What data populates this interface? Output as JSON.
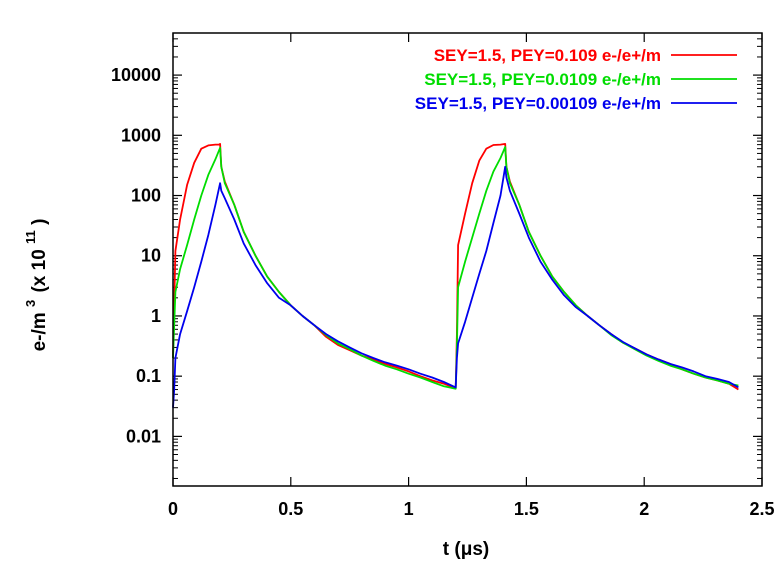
{
  "chart_data": {
    "type": "line",
    "title": "",
    "xlabel": "t (μs)",
    "ylabel": "e-/m",
    "ylabel_super": "3",
    "ylabel_scale": "(x 10",
    "ylabel_scale_exp": "11",
    "ylabel_scale_close": ")",
    "xlim": [
      0,
      2.5
    ],
    "ylim": [
      0.0015,
      50000
    ],
    "yscale": "log",
    "grid": false,
    "legend_position": "top-right",
    "x_ticks": [
      {
        "value": 0,
        "label": "0"
      },
      {
        "value": 0.5,
        "label": "0.5"
      },
      {
        "value": 1,
        "label": "1"
      },
      {
        "value": 1.5,
        "label": "1.5"
      },
      {
        "value": 2,
        "label": "2"
      },
      {
        "value": 2.5,
        "label": "2.5"
      }
    ],
    "y_ticks": [
      {
        "value": 0.01,
        "label": "0.01"
      },
      {
        "value": 0.1,
        "label": "0.1"
      },
      {
        "value": 1,
        "label": "1"
      },
      {
        "value": 10,
        "label": "10"
      },
      {
        "value": 100,
        "label": "100"
      },
      {
        "value": 1000,
        "label": "1000"
      },
      {
        "value": 10000,
        "label": "10000"
      }
    ],
    "series": [
      {
        "name": "SEY=1.5, PEY=0.109 e-/e+/m",
        "color": "#ff0000",
        "points": [
          [
            0,
            0.2
          ],
          [
            0.01,
            12
          ],
          [
            0.03,
            40
          ],
          [
            0.06,
            150
          ],
          [
            0.09,
            350
          ],
          [
            0.12,
            600
          ],
          [
            0.15,
            680
          ],
          [
            0.18,
            700
          ],
          [
            0.195,
            700
          ],
          [
            0.2,
            720
          ],
          [
            0.205,
            300
          ],
          [
            0.22,
            170
          ],
          [
            0.26,
            70
          ],
          [
            0.3,
            25
          ],
          [
            0.35,
            10
          ],
          [
            0.4,
            4.5
          ],
          [
            0.45,
            2.5
          ],
          [
            0.5,
            1.5
          ],
          [
            0.55,
            1.0
          ],
          [
            0.6,
            0.7
          ],
          [
            0.65,
            0.45
          ],
          [
            0.7,
            0.33
          ],
          [
            0.75,
            0.27
          ],
          [
            0.8,
            0.22
          ],
          [
            0.85,
            0.19
          ],
          [
            0.9,
            0.16
          ],
          [
            0.95,
            0.14
          ],
          [
            1.0,
            0.12
          ],
          [
            1.05,
            0.1
          ],
          [
            1.1,
            0.085
          ],
          [
            1.15,
            0.075
          ],
          [
            1.2,
            0.063
          ],
          [
            1.205,
            0.5
          ],
          [
            1.21,
            15
          ],
          [
            1.24,
            50
          ],
          [
            1.27,
            160
          ],
          [
            1.3,
            380
          ],
          [
            1.33,
            600
          ],
          [
            1.36,
            690
          ],
          [
            1.39,
            700
          ],
          [
            1.41,
            720
          ],
          [
            1.415,
            300
          ],
          [
            1.43,
            170
          ],
          [
            1.47,
            70
          ],
          [
            1.51,
            25
          ],
          [
            1.56,
            10
          ],
          [
            1.61,
            4.5
          ],
          [
            1.66,
            2.5
          ],
          [
            1.71,
            1.5
          ],
          [
            1.76,
            1.0
          ],
          [
            1.81,
            0.7
          ],
          [
            1.86,
            0.5
          ],
          [
            1.91,
            0.36
          ],
          [
            1.96,
            0.29
          ],
          [
            2.01,
            0.23
          ],
          [
            2.06,
            0.19
          ],
          [
            2.11,
            0.16
          ],
          [
            2.16,
            0.13
          ],
          [
            2.21,
            0.11
          ],
          [
            2.26,
            0.095
          ],
          [
            2.31,
            0.085
          ],
          [
            2.36,
            0.075
          ],
          [
            2.4,
            0.06
          ]
        ]
      },
      {
        "name": "SEY=1.5, PEY=0.0109 e-/e+/m",
        "color": "#00dd00",
        "points": [
          [
            0,
            0.2
          ],
          [
            0.01,
            2.5
          ],
          [
            0.03,
            6
          ],
          [
            0.06,
            15
          ],
          [
            0.09,
            40
          ],
          [
            0.12,
            100
          ],
          [
            0.15,
            220
          ],
          [
            0.18,
            400
          ],
          [
            0.2,
            620
          ],
          [
            0.205,
            300
          ],
          [
            0.22,
            160
          ],
          [
            0.26,
            70
          ],
          [
            0.3,
            25
          ],
          [
            0.35,
            10
          ],
          [
            0.4,
            4.5
          ],
          [
            0.45,
            2.5
          ],
          [
            0.5,
            1.5
          ],
          [
            0.55,
            1.0
          ],
          [
            0.6,
            0.7
          ],
          [
            0.65,
            0.48
          ],
          [
            0.7,
            0.35
          ],
          [
            0.75,
            0.28
          ],
          [
            0.8,
            0.22
          ],
          [
            0.85,
            0.18
          ],
          [
            0.9,
            0.15
          ],
          [
            0.95,
            0.13
          ],
          [
            1.0,
            0.11
          ],
          [
            1.05,
            0.095
          ],
          [
            1.1,
            0.08
          ],
          [
            1.15,
            0.068
          ],
          [
            1.2,
            0.062
          ],
          [
            1.205,
            0.3
          ],
          [
            1.21,
            3
          ],
          [
            1.24,
            8
          ],
          [
            1.27,
            20
          ],
          [
            1.3,
            50
          ],
          [
            1.33,
            120
          ],
          [
            1.36,
            250
          ],
          [
            1.39,
            420
          ],
          [
            1.41,
            640
          ],
          [
            1.415,
            300
          ],
          [
            1.43,
            160
          ],
          [
            1.47,
            70
          ],
          [
            1.51,
            25
          ],
          [
            1.56,
            10
          ],
          [
            1.61,
            4.5
          ],
          [
            1.66,
            2.5
          ],
          [
            1.71,
            1.5
          ],
          [
            1.76,
            1.0
          ],
          [
            1.81,
            0.7
          ],
          [
            1.86,
            0.48
          ],
          [
            1.91,
            0.36
          ],
          [
            1.96,
            0.28
          ],
          [
            2.01,
            0.22
          ],
          [
            2.06,
            0.18
          ],
          [
            2.11,
            0.15
          ],
          [
            2.16,
            0.13
          ],
          [
            2.21,
            0.11
          ],
          [
            2.26,
            0.095
          ],
          [
            2.31,
            0.085
          ],
          [
            2.36,
            0.075
          ],
          [
            2.4,
            0.07
          ]
        ]
      },
      {
        "name": "SEY=1.5, PEY=0.00109 e-/e+/m",
        "color": "#0000ee",
        "points": [
          [
            0,
            0.03
          ],
          [
            0.005,
            0.06
          ],
          [
            0.01,
            0.2
          ],
          [
            0.03,
            0.5
          ],
          [
            0.06,
            1.2
          ],
          [
            0.09,
            3
          ],
          [
            0.12,
            8
          ],
          [
            0.15,
            22
          ],
          [
            0.18,
            70
          ],
          [
            0.2,
            160
          ],
          [
            0.205,
            120
          ],
          [
            0.22,
            90
          ],
          [
            0.26,
            40
          ],
          [
            0.3,
            16
          ],
          [
            0.35,
            7
          ],
          [
            0.4,
            3.5
          ],
          [
            0.45,
            2.0
          ],
          [
            0.5,
            1.5
          ],
          [
            0.55,
            1.0
          ],
          [
            0.6,
            0.7
          ],
          [
            0.65,
            0.5
          ],
          [
            0.7,
            0.38
          ],
          [
            0.75,
            0.3
          ],
          [
            0.8,
            0.24
          ],
          [
            0.85,
            0.2
          ],
          [
            0.9,
            0.17
          ],
          [
            0.95,
            0.15
          ],
          [
            1.0,
            0.13
          ],
          [
            1.05,
            0.11
          ],
          [
            1.1,
            0.095
          ],
          [
            1.15,
            0.08
          ],
          [
            1.2,
            0.065
          ],
          [
            1.205,
            0.2
          ],
          [
            1.21,
            0.35
          ],
          [
            1.24,
            0.8
          ],
          [
            1.27,
            2
          ],
          [
            1.3,
            5
          ],
          [
            1.33,
            12
          ],
          [
            1.36,
            35
          ],
          [
            1.39,
            100
          ],
          [
            1.41,
            300
          ],
          [
            1.415,
            200
          ],
          [
            1.43,
            120
          ],
          [
            1.47,
            50
          ],
          [
            1.51,
            20
          ],
          [
            1.56,
            8
          ],
          [
            1.61,
            4
          ],
          [
            1.66,
            2.2
          ],
          [
            1.71,
            1.4
          ],
          [
            1.76,
            1.0
          ],
          [
            1.81,
            0.7
          ],
          [
            1.86,
            0.5
          ],
          [
            1.91,
            0.37
          ],
          [
            1.96,
            0.29
          ],
          [
            2.01,
            0.23
          ],
          [
            2.06,
            0.19
          ],
          [
            2.11,
            0.16
          ],
          [
            2.16,
            0.14
          ],
          [
            2.21,
            0.12
          ],
          [
            2.26,
            0.1
          ],
          [
            2.31,
            0.09
          ],
          [
            2.36,
            0.08
          ],
          [
            2.4,
            0.065
          ]
        ]
      }
    ]
  }
}
